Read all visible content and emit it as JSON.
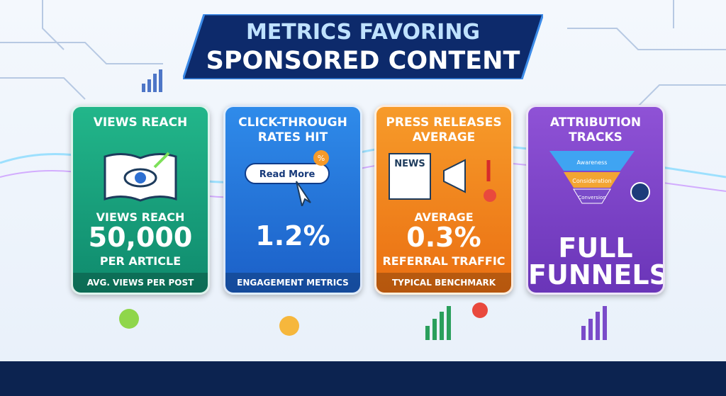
{
  "header": {
    "title_line1": "METRICS FAVORING",
    "title_line2": "SPONSORED CONTENT"
  },
  "cards": [
    {
      "heading": "VIEWS REACH",
      "lines": [
        "VIEWS REACH",
        "50,000",
        "PER ARTICLE"
      ],
      "footer": "AVG. VIEWS PER POST"
    },
    {
      "heading": "CLICK-THROUGH RATES HIT",
      "icon_texts": [
        "Read More",
        "%"
      ],
      "lines": [
        "1.2%"
      ],
      "footer": "ENGAGEMENT METRICS"
    },
    {
      "heading": "PRESS RELEASES AVERAGE",
      "icon_texts": [
        "NEWS"
      ],
      "lines": [
        "AVERAGE",
        "0.3%",
        "REFERRAL TRAFFIC"
      ],
      "footer": "TYPICAL BENCHMARK"
    },
    {
      "heading": "ATTRIBUTION TRACKS",
      "icon_texts": [
        "Awareness",
        "Consideration",
        "Conversion"
      ],
      "lines": [
        "FULL",
        "FUNNELS"
      ]
    }
  ]
}
